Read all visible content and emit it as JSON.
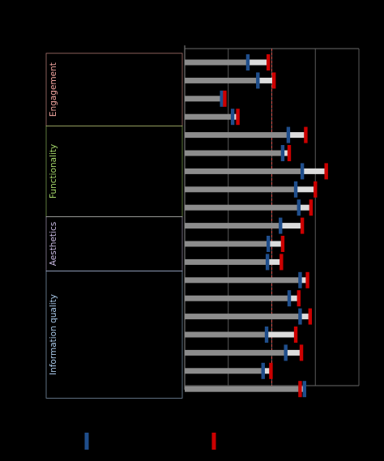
{
  "chart_data": {
    "type": "bar",
    "orientation": "horizontal",
    "title": "",
    "xlabel": "",
    "ylabel": "",
    "xlim": [
      0,
      4
    ],
    "grid": true,
    "reference_line": {
      "x": 2,
      "color": "#d9534f",
      "style": "dashed"
    },
    "groups": [
      {
        "label": "Engagement",
        "color": "#f4a6a0",
        "start": 0,
        "count": 4
      },
      {
        "label": "Functionality",
        "color": "#a6d96a",
        "start": 4,
        "count": 5
      },
      {
        "label": "Aesthetics",
        "color": "#c7b8e0",
        "start": 9,
        "count": 3
      },
      {
        "label": "Information quality",
        "color": "#a8c8e8",
        "start": 12,
        "count": 7
      }
    ],
    "categories": [
      "",
      "",
      "",
      "",
      "",
      "",
      "",
      "",
      "",
      "",
      "",
      "",
      "",
      "",
      "",
      "",
      "",
      "",
      ""
    ],
    "series": [
      {
        "marker": "blue",
        "color": "#1f4e8c",
        "values": [
          1.45,
          1.68,
          0.85,
          1.1,
          2.38,
          2.25,
          2.7,
          2.55,
          2.62,
          2.2,
          1.92,
          1.9,
          2.65,
          2.4,
          2.65,
          1.88,
          2.32,
          1.8,
          2.75
        ]
      },
      {
        "marker": "red",
        "color": "#cc0000",
        "values": [
          1.92,
          2.05,
          0.92,
          1.22,
          2.78,
          2.4,
          3.25,
          3.0,
          2.9,
          2.7,
          2.25,
          2.22,
          2.82,
          2.62,
          2.88,
          2.55,
          2.68,
          1.98,
          2.65
        ]
      }
    ],
    "legend": {
      "position": "bottom",
      "entries": [
        {
          "color": "#1f4e8c"
        },
        {
          "color": "#cc0000"
        }
      ]
    }
  }
}
